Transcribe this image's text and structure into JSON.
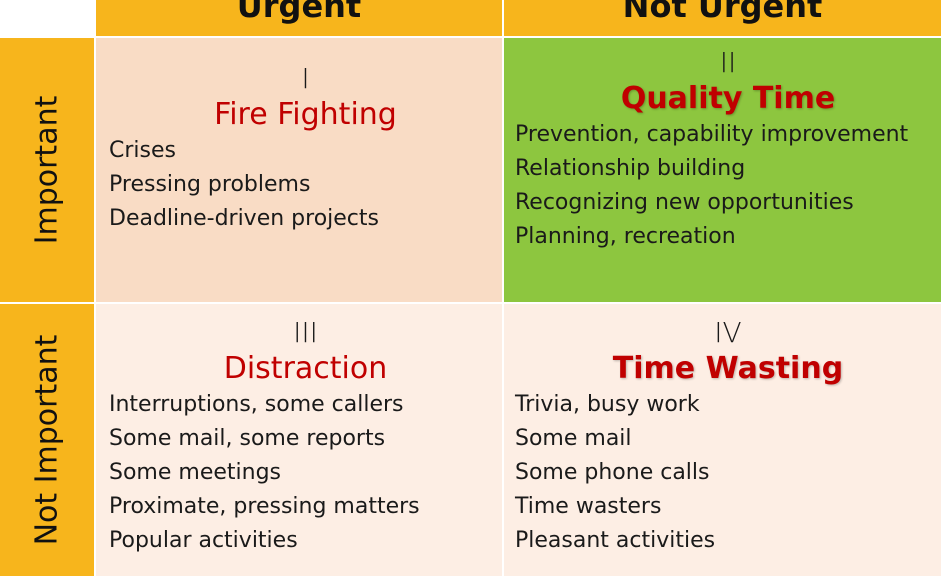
{
  "header": {
    "col_urgent": "Urgent",
    "col_not_urgent": "Not Urgent",
    "row_important": "Important",
    "row_not_important": "Not Important"
  },
  "colors": {
    "header_bg": "#f7b51c",
    "quadrant_1_bg": "#f9dcc5",
    "quadrant_2_bg": "#8dc63f",
    "quadrant_3_bg": "#fdeee4",
    "quadrant_4_bg": "#fdeee4",
    "title_red": "#c00000"
  },
  "quadrants": [
    {
      "number": "I",
      "title": "Fire Fighting",
      "items": [
        "Crises",
        "Pressing problems",
        "Deadline-driven projects"
      ]
    },
    {
      "number": "II",
      "title": "Quality Time",
      "items": [
        "Prevention, capability improvement",
        "Relationship building",
        "Recognizing new opportunities",
        "Planning, recreation"
      ]
    },
    {
      "number": "III",
      "title": "Distraction",
      "items": [
        "Interruptions, some callers",
        "Some mail, some reports",
        "Some meetings",
        "Proximate, pressing matters",
        "Popular activities"
      ]
    },
    {
      "number": "IV",
      "title": "Time Wasting",
      "items": [
        "Trivia, busy work",
        "Some mail",
        "Some phone calls",
        "Time wasters",
        "Pleasant activities"
      ]
    }
  ]
}
